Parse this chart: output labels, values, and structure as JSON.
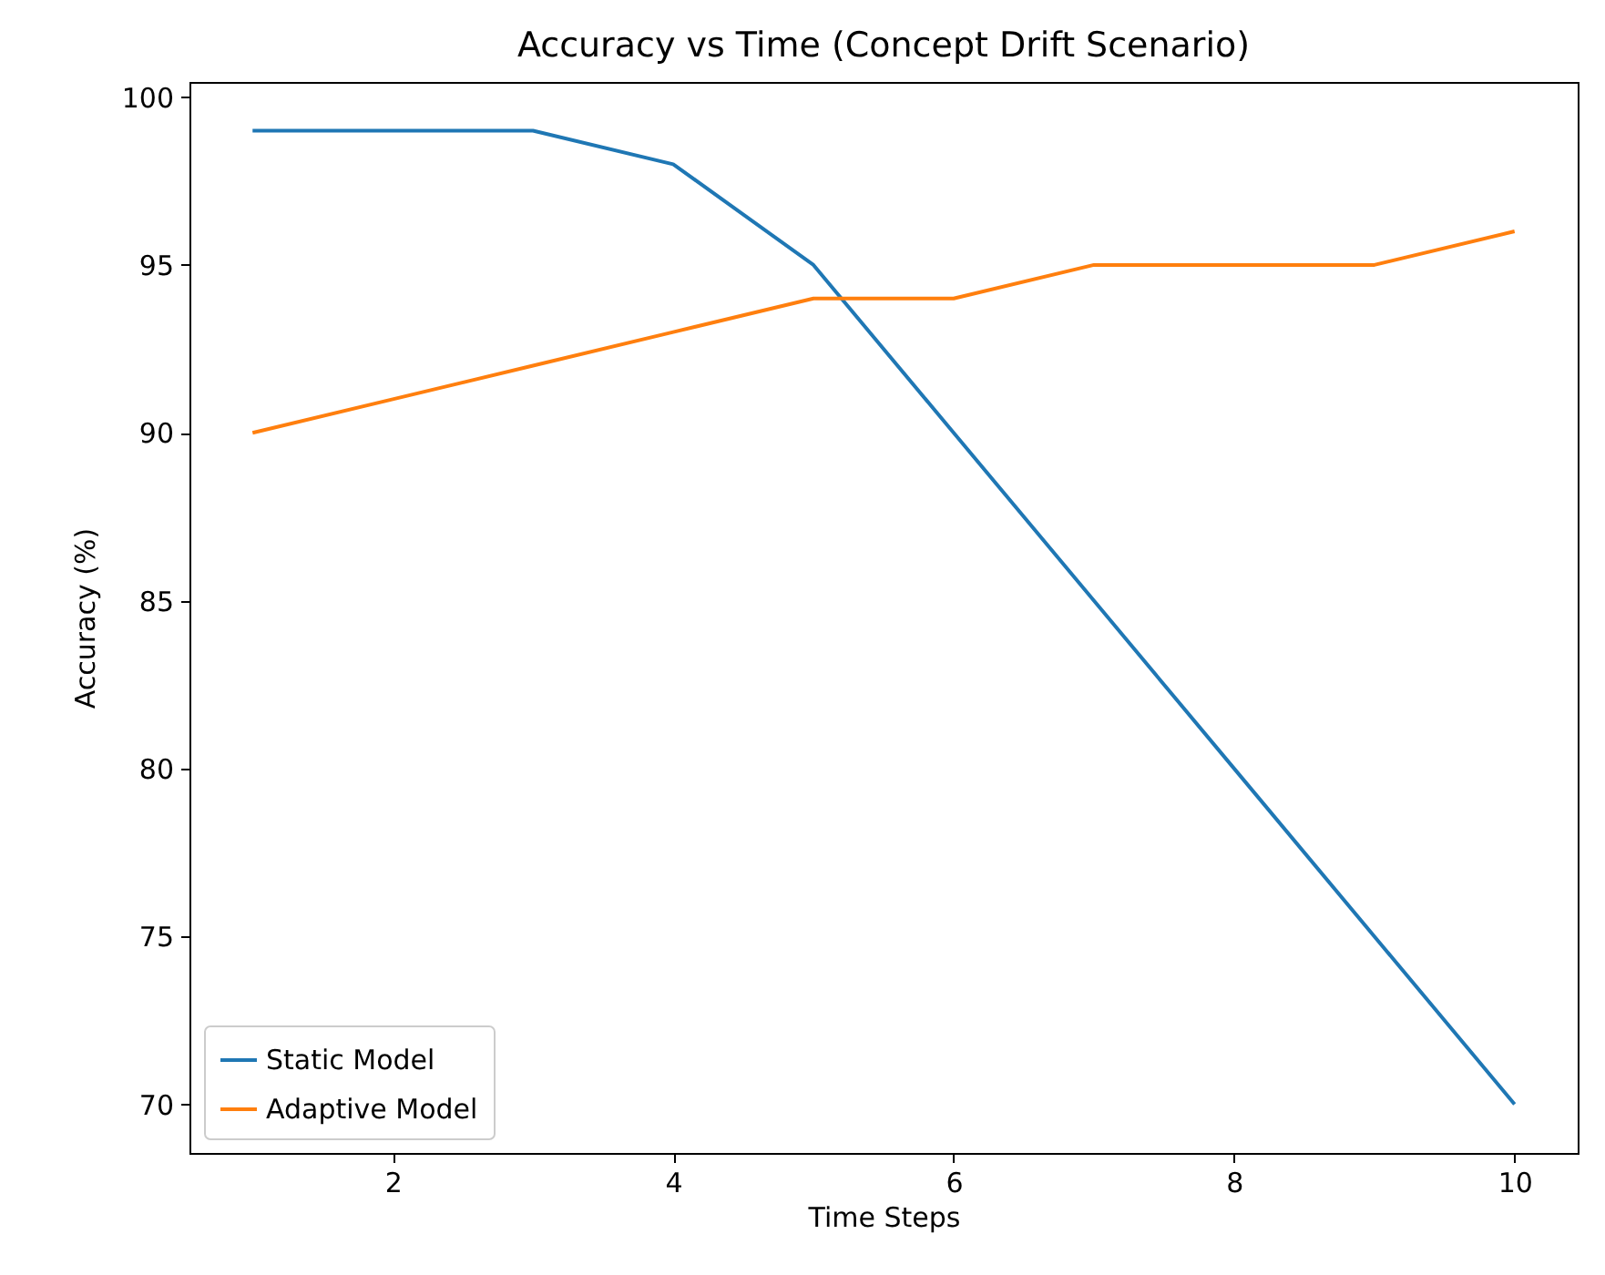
{
  "chart_data": {
    "type": "line",
    "title": "Accuracy vs Time (Concept Drift Scenario)",
    "xlabel": "Time Steps",
    "ylabel": "Accuracy (%)",
    "x": [
      1,
      2,
      3,
      4,
      5,
      6,
      7,
      8,
      9,
      10
    ],
    "series": [
      {
        "name": "Static Model",
        "color": "#1f77b4",
        "values": [
          99,
          99,
          99,
          98,
          95,
          90,
          85,
          80,
          75,
          70
        ]
      },
      {
        "name": "Adaptive Model",
        "color": "#ff7f0e",
        "values": [
          90,
          91,
          92,
          93,
          94,
          94,
          95,
          95,
          95,
          96
        ]
      }
    ],
    "xlim": [
      0.55,
      10.45
    ],
    "xticks": [
      2,
      4,
      6,
      8,
      10
    ],
    "ylim": [
      68.55,
      100.45
    ],
    "yticks": [
      70,
      75,
      80,
      85,
      90,
      95,
      100
    ],
    "grid": false,
    "legend": "bottom left",
    "marker": "none",
    "line_style": "solid"
  }
}
